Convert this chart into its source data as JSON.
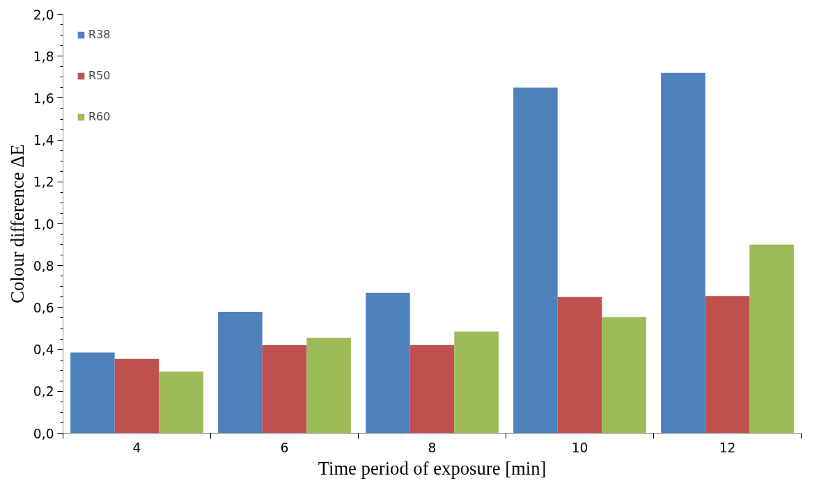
{
  "chart_data": {
    "type": "bar",
    "xlabel": "Time period of exposure [min]",
    "ylabel": "Colour difference ΔE",
    "categories": [
      "4",
      "6",
      "8",
      "10",
      "12"
    ],
    "series": [
      {
        "name": "R38",
        "color": "#4f81bd",
        "values": [
          0.385,
          0.58,
          0.67,
          1.65,
          1.72
        ]
      },
      {
        "name": "R50",
        "color": "#c0504d",
        "values": [
          0.355,
          0.42,
          0.42,
          0.65,
          0.655
        ]
      },
      {
        "name": "R60",
        "color": "#9bbb59",
        "values": [
          0.295,
          0.455,
          0.485,
          0.555,
          0.9
        ]
      }
    ],
    "ylim": [
      0,
      2
    ],
    "yticks": [
      {
        "value": 0,
        "label": "0,0"
      },
      {
        "value": 0.2,
        "label": "0,2"
      },
      {
        "value": 0.4,
        "label": "0,4"
      },
      {
        "value": 0.6,
        "label": "0,6"
      },
      {
        "value": 0.8,
        "label": "0,8"
      },
      {
        "value": 1.0,
        "label": "1,0"
      },
      {
        "value": 1.2,
        "label": "1,2"
      },
      {
        "value": 1.4,
        "label": "1,4"
      },
      {
        "value": 1.6,
        "label": "1,6"
      },
      {
        "value": 1.8,
        "label": "1,8"
      },
      {
        "value": 2.0,
        "label": "2,0"
      }
    ],
    "grid": false,
    "legend": "top left"
  }
}
